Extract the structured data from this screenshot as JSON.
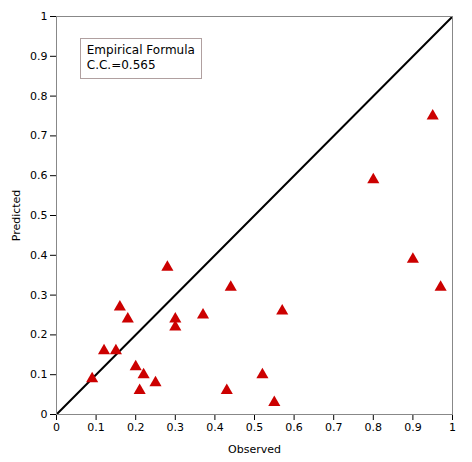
{
  "chart_data": {
    "type": "scatter",
    "xlabel": "Observed",
    "ylabel": "Predicted",
    "xlim": [
      0,
      1
    ],
    "ylim": [
      0,
      1
    ],
    "xticks": [
      0,
      0.1,
      0.2,
      0.3,
      0.4,
      0.5,
      0.6,
      0.7,
      0.8,
      0.9,
      1
    ],
    "yticks": [
      0,
      0.1,
      0.2,
      0.3,
      0.4,
      0.5,
      0.6,
      0.7,
      0.8,
      0.9,
      1
    ],
    "grid": false,
    "annotations": [
      "Empirical Formula",
      "C.C.=0.565"
    ],
    "series": [
      {
        "type": "line",
        "color": "black",
        "x": [
          0,
          1
        ],
        "values": [
          0,
          1
        ]
      },
      {
        "type": "scatter",
        "color": "#cc0000",
        "marker": "triangle",
        "x": [
          0.09,
          0.12,
          0.15,
          0.16,
          0.18,
          0.2,
          0.21,
          0.22,
          0.25,
          0.28,
          0.3,
          0.3,
          0.37,
          0.43,
          0.44,
          0.52,
          0.55,
          0.57,
          0.8,
          0.9,
          0.95,
          0.97
        ],
        "values": [
          0.09,
          0.16,
          0.16,
          0.27,
          0.24,
          0.12,
          0.06,
          0.1,
          0.08,
          0.37,
          0.24,
          0.22,
          0.25,
          0.06,
          0.32,
          0.1,
          0.03,
          0.26,
          0.59,
          0.39,
          0.75,
          0.32
        ]
      }
    ]
  }
}
